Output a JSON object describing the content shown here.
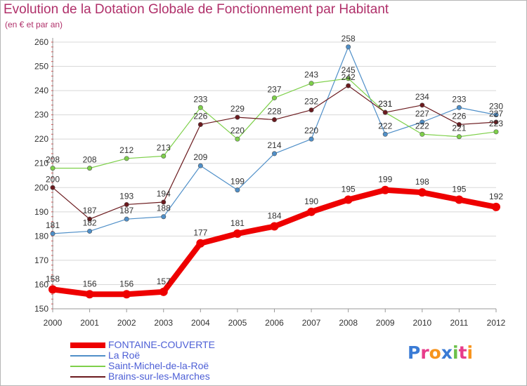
{
  "title": "Evolution de la Dotation Globale de Fonctionnement par Habitant",
  "subtitle": "(en € et par an)",
  "logo": {
    "letters": [
      "P",
      "r",
      "o",
      "x",
      "i",
      "t",
      "i"
    ],
    "colors": [
      "#3a7bd5",
      "#e83c8a",
      "#f7941d",
      "#3a7bd5",
      "#6cc04a",
      "#e83c8a",
      "#f7941d"
    ]
  },
  "chart_data": {
    "type": "line",
    "title": "Evolution de la Dotation Globale de Fonctionnement par Habitant",
    "ylabel": "(en € et par an)",
    "xlabel": "",
    "categories": [
      "2000",
      "2001",
      "2002",
      "2003",
      "2004",
      "2005",
      "2006",
      "2007",
      "2008",
      "2009",
      "2010",
      "2011",
      "2012"
    ],
    "yticks": [
      150,
      160,
      170,
      180,
      190,
      200,
      210,
      220,
      230,
      240,
      250,
      260
    ],
    "ylim": [
      150,
      260
    ],
    "grid": true,
    "series": [
      {
        "name": "La Roë",
        "color": "#4f8fc8",
        "values": [
          181,
          182,
          187,
          188,
          209,
          199,
          214,
          220,
          258,
          222,
          227,
          233,
          230
        ]
      },
      {
        "name": "Saint-Michel-de-la-Roë",
        "color": "#7ed04a",
        "values": [
          208,
          208,
          212,
          213,
          233,
          220,
          237,
          243,
          245,
          231,
          222,
          221,
          223
        ]
      },
      {
        "name": "Brains-sur-les-Marches",
        "color": "#6b1a1e",
        "values": [
          200,
          187,
          193,
          194,
          226,
          229,
          228,
          232,
          242,
          231,
          234,
          226,
          227
        ]
      },
      {
        "name": "FONTAINE-COUVERTE",
        "color": "#ee0000",
        "values": [
          158,
          156,
          156,
          157,
          177,
          181,
          184,
          190,
          195,
          199,
          198,
          195,
          192
        ]
      }
    ],
    "legend": [
      "FONTAINE-COUVERTE",
      "La Roë",
      "Saint-Michel-de-la-Roë",
      "Brains-sur-les-Marches"
    ]
  }
}
